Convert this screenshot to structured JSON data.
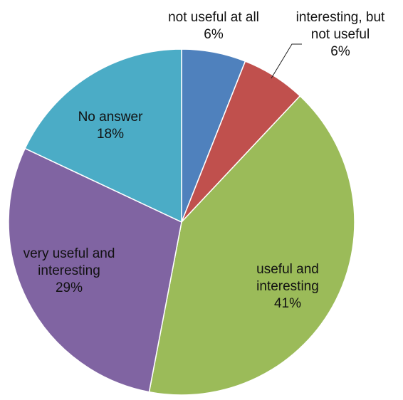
{
  "chart_data": {
    "type": "pie",
    "title": "",
    "slices": [
      {
        "name": "not useful at all",
        "value": 6,
        "label_lines": [
          "not useful at all",
          "6%"
        ],
        "color": "#4f81bd"
      },
      {
        "name": "interesting, but not useful",
        "value": 6,
        "label_lines": [
          "interesting, but",
          "not useful",
          "6%"
        ],
        "color": "#c0504d"
      },
      {
        "name": "useful and interesting",
        "value": 41,
        "label_lines": [
          "useful and",
          "interesting",
          "41%"
        ],
        "color": "#9bbb59"
      },
      {
        "name": "very useful and interesting",
        "value": 29,
        "label_lines": [
          "very useful and",
          "interesting",
          "29%"
        ],
        "color": "#8064a2"
      },
      {
        "name": "No answer",
        "value": 18,
        "label_lines": [
          "No answer",
          "18%"
        ],
        "color": "#4bacc6"
      }
    ],
    "start_angle_deg": 0,
    "direction": "clockwise",
    "legend": "none"
  }
}
